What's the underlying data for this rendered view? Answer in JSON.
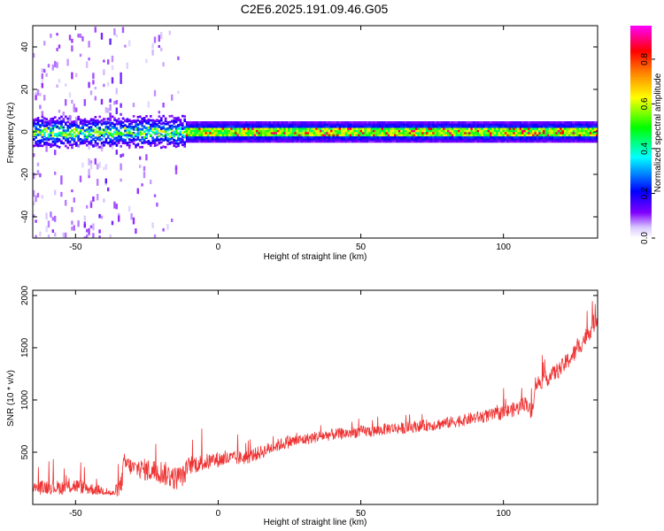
{
  "title": "C2E6.2025.191.09.46.G05",
  "chart_data": [
    {
      "type": "heatmap",
      "xlabel": "Height of straight line (km)",
      "ylabel": "Frequency (Hz)",
      "xlim": [
        -65,
        133
      ],
      "ylim": [
        -50,
        50
      ],
      "xticks": [
        -50,
        0,
        50,
        100
      ],
      "yticks": [
        -40,
        -20,
        0,
        20,
        40
      ],
      "colorbar": {
        "label": "Normalized spectral amplitude",
        "range": [
          0,
          0.95
        ],
        "ticks": [
          "0.0",
          "0.2",
          "0.4",
          "0.6",
          "0.8"
        ],
        "colors": [
          "#ffffff",
          "#8000ff",
          "#0000ff",
          "#00ffff",
          "#00ff00",
          "#ffff00",
          "#ff8000",
          "#ff0000",
          "#ff00ff"
        ]
      },
      "ridge": {
        "frequency": 0,
        "amplitude_max": 0.95
      },
      "grid": false
    },
    {
      "type": "line",
      "xlabel": "Height of straight line (km)",
      "ylabel": "SNR (10 * v/v)",
      "xlim": [
        -65,
        133
      ],
      "ylim": [
        0,
        2050
      ],
      "xticks": [
        -50,
        0,
        50,
        100
      ],
      "yticks": [
        500,
        1000,
        1500,
        2000
      ],
      "color": "#ee3333",
      "grid": false,
      "x": [
        -65,
        -60,
        -55,
        -50,
        -45,
        -40,
        -37,
        -34,
        -33,
        -30,
        -25,
        -20,
        -15,
        -12,
        -10,
        -5,
        0,
        5,
        10,
        15,
        20,
        25,
        30,
        35,
        40,
        45,
        50,
        55,
        60,
        65,
        70,
        75,
        80,
        85,
        90,
        95,
        100,
        105,
        108,
        110,
        111,
        115,
        120,
        125,
        130,
        133
      ],
      "y": [
        150,
        170,
        160,
        180,
        150,
        130,
        100,
        180,
        400,
        350,
        330,
        310,
        250,
        280,
        380,
        400,
        430,
        440,
        450,
        500,
        560,
        600,
        620,
        650,
        670,
        680,
        700,
        700,
        730,
        730,
        750,
        760,
        780,
        800,
        830,
        850,
        880,
        920,
        980,
        850,
        1150,
        1200,
        1300,
        1450,
        1650,
        1800
      ],
      "spread": [
        120,
        140,
        130,
        140,
        120,
        80,
        60,
        200,
        180,
        160,
        220,
        230,
        230,
        200,
        180,
        160,
        150,
        140,
        130,
        130,
        120,
        120,
        110,
        110,
        110,
        110,
        110,
        110,
        110,
        110,
        110,
        110,
        110,
        110,
        115,
        120,
        130,
        140,
        140,
        150,
        150,
        150,
        160,
        170,
        170,
        180
      ]
    }
  ]
}
